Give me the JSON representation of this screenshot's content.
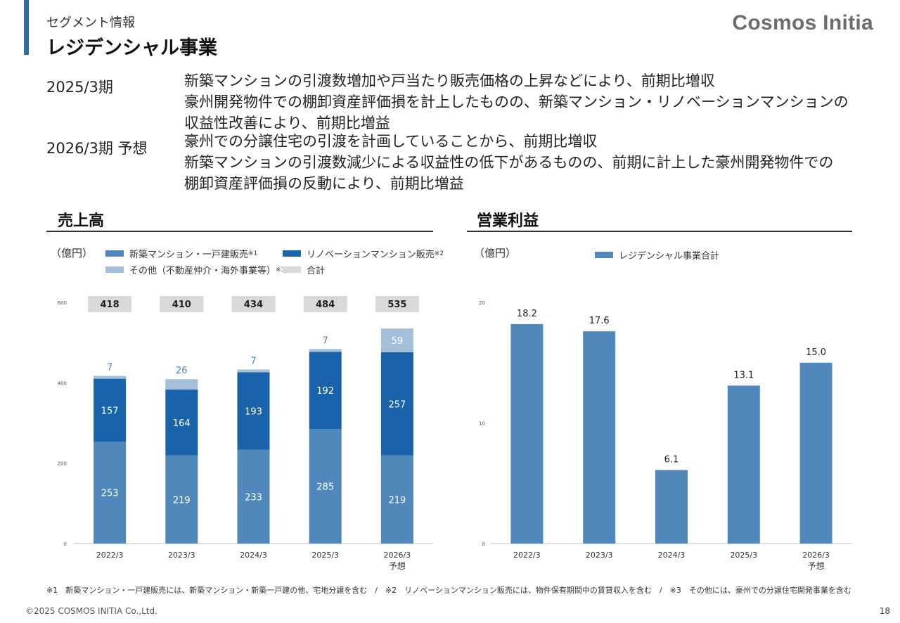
{
  "header": {
    "segment_label": "セグメント情報",
    "title": "レジデンシャル事業",
    "logo": "Cosmos Initia"
  },
  "summary": {
    "p2025": {
      "label": "2025/3期",
      "lines": [
        "新築マンションの引渡数増加や戸当たり販売価格の上昇などにより、前期比増収",
        "豪州開発物件での棚卸資産評価損を計上したものの、新築マンション・リノベーションマンションの",
        "収益性改善により、前期比増益"
      ]
    },
    "p2026": {
      "label": "2026/3期 予想",
      "lines": [
        "豪州での分譲住宅の引渡を計画していることから、前期比増収",
        "新築マンションの引渡数減少による収益性の低下があるものの、前期に計上した豪州開発物件での",
        "棚卸資産評価損の反動により、前期比増益"
      ]
    }
  },
  "colors": {
    "new_condo": "#5088bb",
    "renovation": "#1863a9",
    "other": "#a3bfda",
    "total": "#d9d9d9",
    "profit": "#5088bb",
    "accent": "#2e6da4"
  },
  "left_chart": {
    "section_title": "売上高",
    "unit": "（億円）",
    "legend": {
      "new_condo": {
        "text": "新築マンション・一戸建販売",
        "note": "※1"
      },
      "renovation": {
        "text": "リノベーションマンション販売",
        "note": "※2"
      },
      "other": {
        "text": "その他（不動産仲介・海外事業等）",
        "note": "※3"
      },
      "total": {
        "text": "合計",
        "note": ""
      }
    }
  },
  "right_chart": {
    "section_title": "営業利益",
    "unit": "（億円）",
    "legend": {
      "text": "レジデンシャル事業合計"
    }
  },
  "chart_data": [
    {
      "type": "bar",
      "stacked": true,
      "title": "売上高",
      "ylabel": "（億円）",
      "ylim": [
        0,
        600
      ],
      "yticks": [
        "0",
        "200",
        "400",
        "600"
      ],
      "categories": [
        "2022/3",
        "2023/3",
        "2024/3",
        "2025/3",
        "2026/3"
      ],
      "category_sublabels": [
        "",
        "",
        "",
        "",
        "予想"
      ],
      "series": [
        {
          "name": "新築マンション・一戸建販売※1",
          "values": [
            253,
            219,
            233,
            285,
            219
          ]
        },
        {
          "name": "リノベーションマンション販売※2",
          "values": [
            157,
            164,
            193,
            192,
            257
          ]
        },
        {
          "name": "その他（不動産仲介・海外事業等）※3",
          "values": [
            7,
            26,
            7,
            7,
            59
          ]
        }
      ],
      "totals": [
        418,
        410,
        434,
        484,
        535
      ],
      "value_labels": {
        "new_condo": [
          "253",
          "219",
          "233",
          "285",
          "219"
        ],
        "renovation": [
          "157",
          "164",
          "193",
          "192",
          "257"
        ],
        "other": [
          "7",
          "26",
          "7",
          "7",
          "59"
        ],
        "totals": [
          "418",
          "410",
          "434",
          "484",
          "535"
        ]
      }
    },
    {
      "type": "bar",
      "title": "営業利益",
      "ylabel": "（億円）",
      "ylim": [
        0,
        20
      ],
      "yticks": [
        "0",
        "10",
        "20"
      ],
      "categories": [
        "2022/3",
        "2023/3",
        "2024/3",
        "2025/3",
        "2026/3"
      ],
      "category_sublabels": [
        "",
        "",
        "",
        "",
        "予想"
      ],
      "series": [
        {
          "name": "レジデンシャル事業合計",
          "values": [
            18.2,
            17.6,
            6.1,
            13.1,
            15.0
          ]
        }
      ],
      "value_labels": [
        "18.2",
        "17.6",
        "6.1",
        "13.1",
        "15.0"
      ]
    }
  ],
  "footnote": "※1　新築マンション・一戸建販売には、新築マンション・新築一戸建の他、宅地分譲を含む　/　※2　リノベーションマンション販売には、物件保有期間中の賃貸収入を含む　/　※3　その他には、豪州での分譲住宅開発事業を含む",
  "footer": {
    "copyright": "©2025 COSMOS INITIA Co.,Ltd.",
    "page": "18"
  }
}
